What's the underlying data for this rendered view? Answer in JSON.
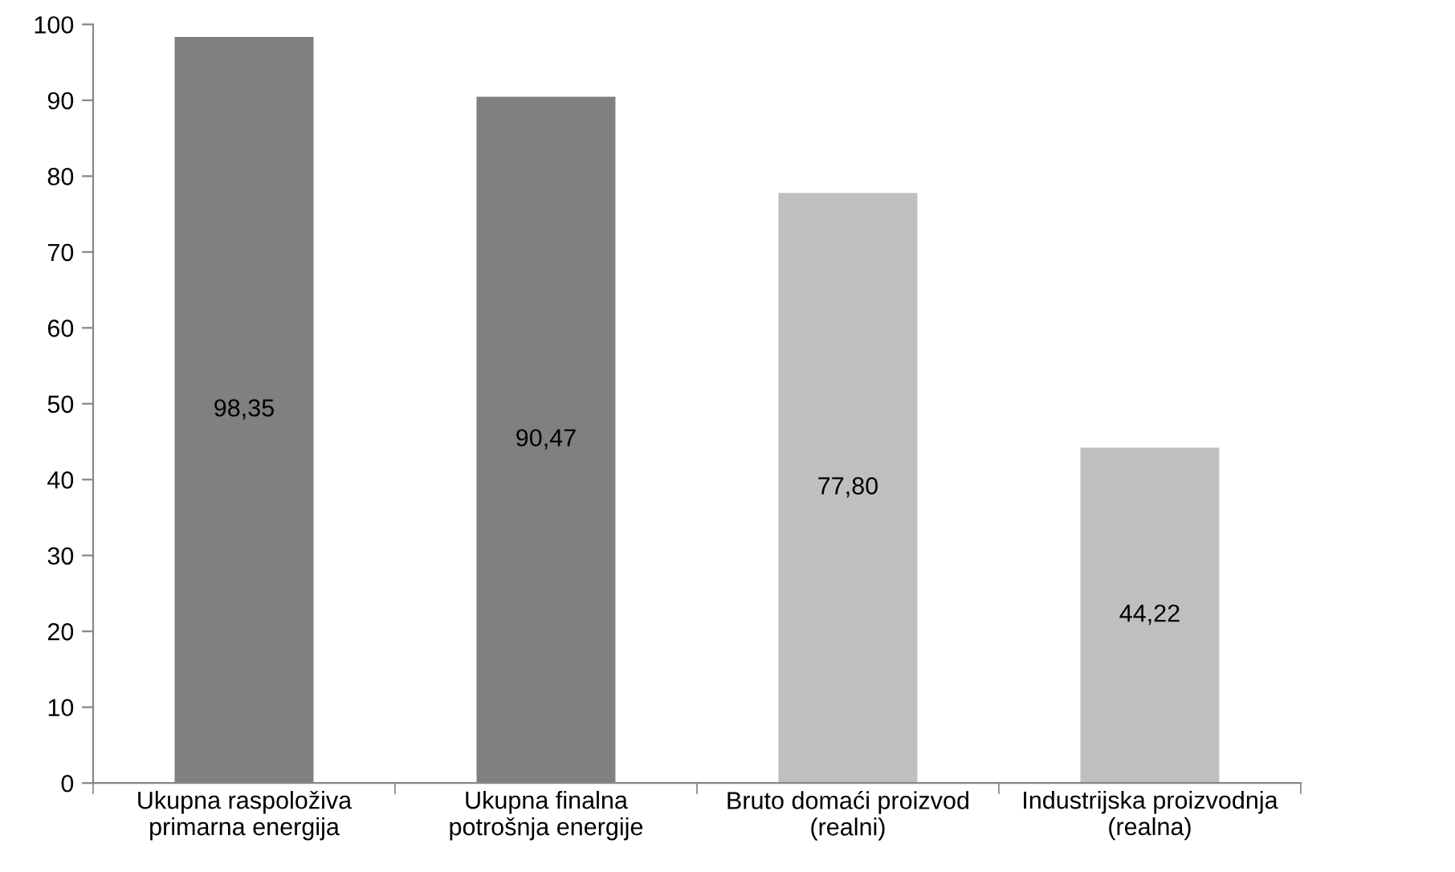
{
  "chart_data": {
    "type": "bar",
    "categories": [
      "Ukupna raspoloživa\nprimarna energija",
      "Ukupna finalna\npotrošnja energije",
      "Bruto domaći proizvod\n(realni)",
      "Industrijska proizvodnja\n(realna)"
    ],
    "values": [
      98.35,
      90.47,
      77.8,
      44.22
    ],
    "colors": [
      "#808080",
      "#808080",
      "#bfbfbf",
      "#bfbfbf"
    ],
    "value_labels": [
      "98,35",
      "90,47",
      "77,80",
      "44,22"
    ],
    "ylim": [
      0,
      100
    ],
    "yticks": [
      0,
      10,
      20,
      30,
      40,
      50,
      60,
      70,
      80,
      90,
      100
    ],
    "grid": false,
    "legend": false
  }
}
